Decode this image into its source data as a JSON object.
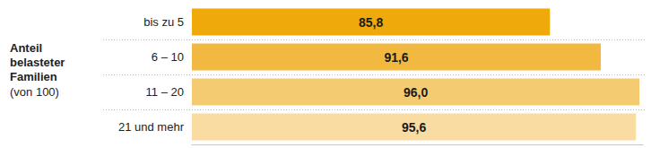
{
  "chart_data": {
    "type": "bar",
    "orientation": "horizontal",
    "title": "Anteil belasteter Familien",
    "subtitle": "(von 100)",
    "categories": [
      "bis zu 5",
      "6 – 10",
      "11 – 20",
      "21 und mehr"
    ],
    "values": [
      85.8,
      91.6,
      96.0,
      95.6
    ],
    "value_labels": [
      "85,8",
      "91,6",
      "96,0",
      "95,6"
    ],
    "colors": [
      "#efa90b",
      "#f2b940",
      "#f5cb72",
      "#f8dca2"
    ],
    "xlim": [
      45,
      96.5
    ],
    "xticks": [],
    "grid": false,
    "data_labels": true,
    "tick_labels": "y"
  }
}
